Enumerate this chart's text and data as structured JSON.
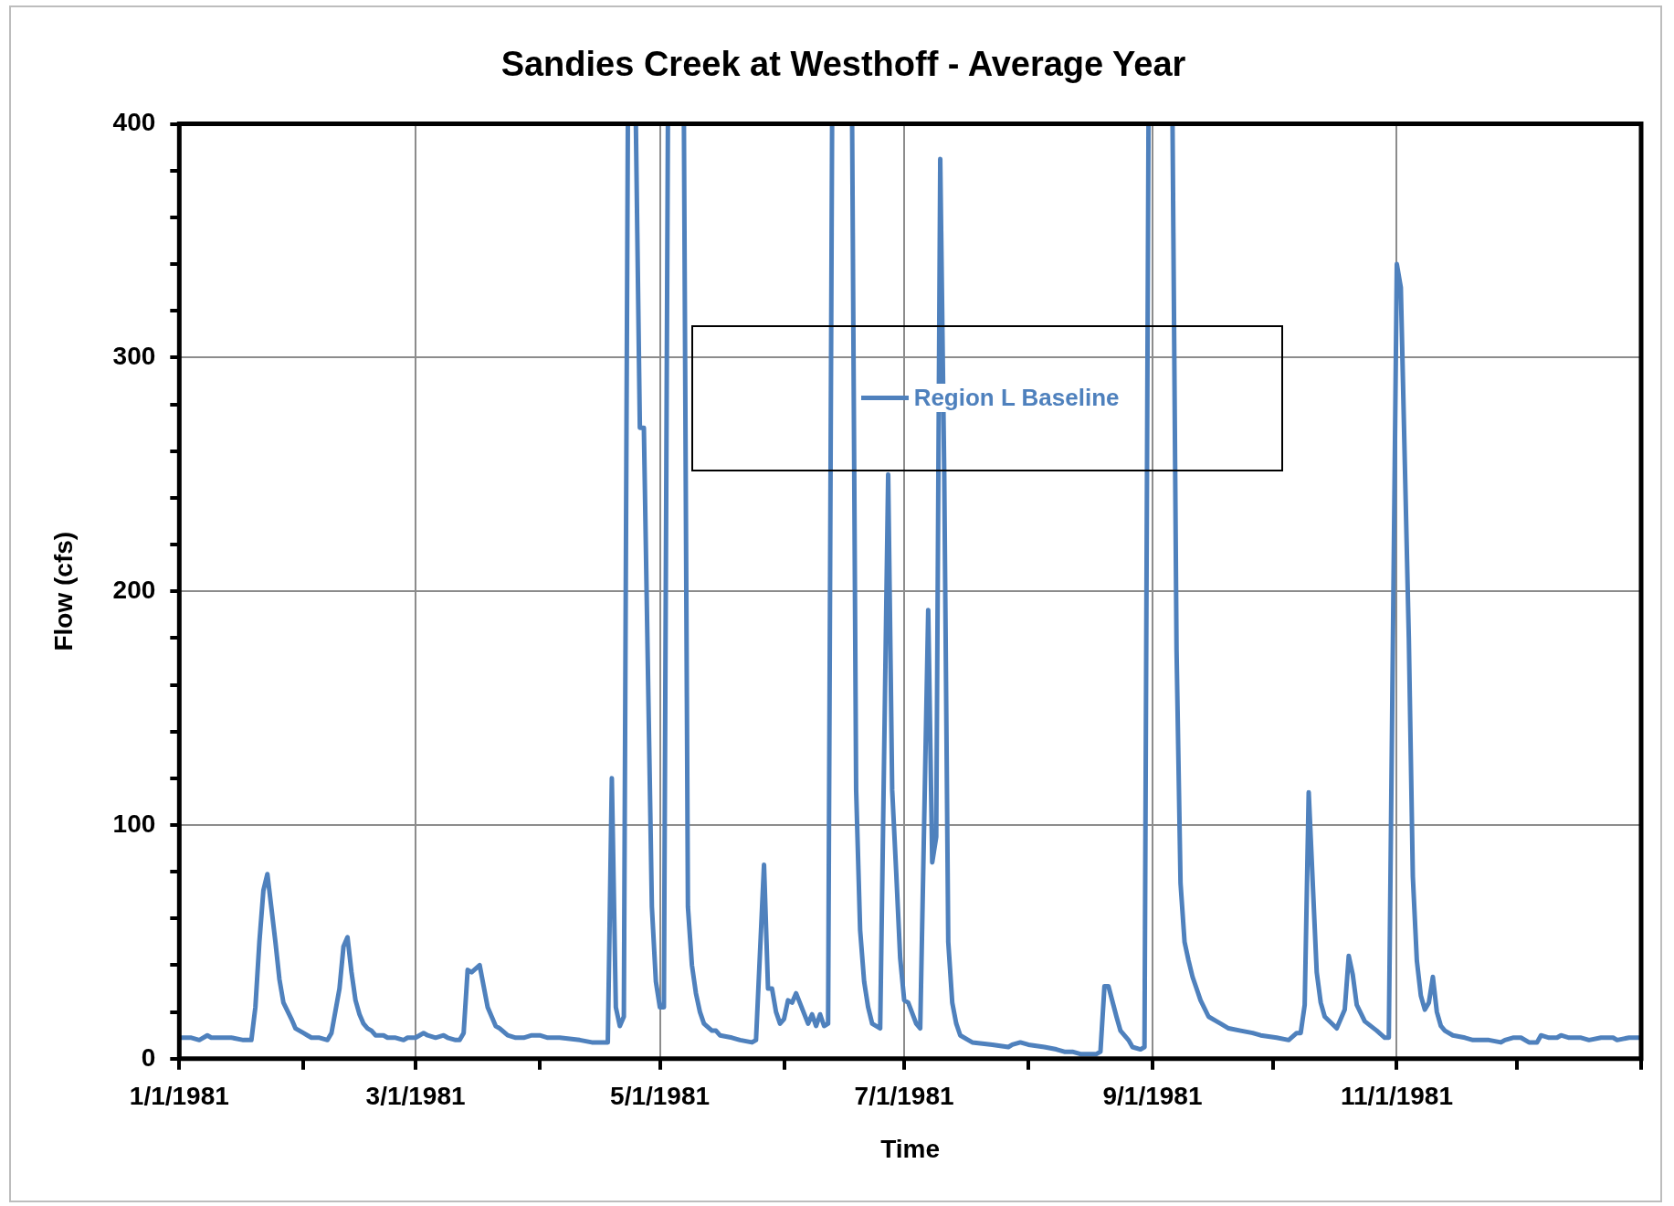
{
  "chart_data": {
    "type": "line",
    "title": "Sandies Creek at Westhoff - Average Year",
    "xlabel": "Time",
    "ylabel": "Flow (cfs)",
    "xlim": [
      "1981-01-01",
      "1982-01-01"
    ],
    "xticks": [
      {
        "value": "1981-01-01",
        "label": "1/1/1981"
      },
      {
        "value": "1981-02-01",
        "label": null
      },
      {
        "value": "1981-03-01",
        "label": "3/1/1981"
      },
      {
        "value": "1981-04-01",
        "label": null
      },
      {
        "value": "1981-05-01",
        "label": "5/1/1981"
      },
      {
        "value": "1981-06-01",
        "label": null
      },
      {
        "value": "1981-07-01",
        "label": "7/1/1981"
      },
      {
        "value": "1981-08-01",
        "label": null
      },
      {
        "value": "1981-09-01",
        "label": "9/1/1981"
      },
      {
        "value": "1981-10-01",
        "label": null
      },
      {
        "value": "1981-11-01",
        "label": "11/1/1981"
      },
      {
        "value": "1981-12-01",
        "label": null
      },
      {
        "value": "1982-01-01",
        "label": null
      }
    ],
    "ylim": [
      0,
      400
    ],
    "yticks": [
      0,
      {
        "value": 20,
        "label": null
      },
      {
        "value": 40,
        "label": null
      },
      {
        "value": 60,
        "label": null
      },
      {
        "value": 80,
        "label": null
      },
      100,
      {
        "value": 120,
        "label": null
      },
      {
        "value": 140,
        "label": null
      },
      {
        "value": 160,
        "label": null
      },
      {
        "value": 180,
        "label": null
      },
      200,
      {
        "value": 220,
        "label": null
      },
      {
        "value": 240,
        "label": null
      },
      {
        "value": 260,
        "label": null
      },
      {
        "value": 280,
        "label": null
      },
      300,
      {
        "value": 320,
        "label": null
      },
      {
        "value": 340,
        "label": null
      },
      {
        "value": 360,
        "label": null
      },
      {
        "value": 380,
        "label": null
      },
      400
    ],
    "grid": true,
    "legend": "top",
    "marker": "none",
    "line_style": "solid",
    "series": [
      {
        "name": "Region L Baseline",
        "color": "#4f81bd",
        "x": [
          "1981-01-01",
          "1981-01-04",
          "1981-01-06",
          "1981-01-08",
          "1981-01-09",
          "1981-01-14",
          "1981-01-17",
          "1981-01-19",
          "1981-01-20",
          "1981-01-21",
          "1981-01-22",
          "1981-01-23",
          "1981-01-25",
          "1981-01-26",
          "1981-01-27",
          "1981-01-29",
          "1981-01-30",
          "1981-02-01",
          "1981-02-02",
          "1981-02-03",
          "1981-02-05",
          "1981-02-07",
          "1981-02-08",
          "1981-02-10",
          "1981-02-11",
          "1981-02-12",
          "1981-02-13",
          "1981-02-14",
          "1981-02-15",
          "1981-02-16",
          "1981-02-17",
          "1981-02-18",
          "1981-02-19",
          "1981-02-21",
          "1981-02-22",
          "1981-02-24",
          "1981-02-26",
          "1981-02-27",
          "1981-03-01",
          "1981-03-02",
          "1981-03-03",
          "1981-03-04",
          "1981-03-06",
          "1981-03-08",
          "1981-03-09",
          "1981-03-11",
          "1981-03-12",
          "1981-03-13",
          "1981-03-14",
          "1981-03-15",
          "1981-03-17",
          "1981-03-18",
          "1981-03-19",
          "1981-03-20",
          "1981-03-21",
          "1981-03-22",
          "1981-03-24",
          "1981-03-26",
          "1981-03-28",
          "1981-03-30",
          "1981-04-01",
          "1981-04-03",
          "1981-04-06",
          "1981-04-11",
          "1981-04-14",
          "1981-04-17",
          "1981-04-18",
          "1981-04-19",
          "1981-04-20",
          "1981-04-21",
          "1981-04-22",
          "1981-04-23",
          "1981-04-25",
          "1981-04-26",
          "1981-04-27",
          "1981-04-29",
          "1981-04-30",
          "1981-05-01",
          "1981-05-02",
          "1981-05-03",
          "1981-05-07",
          "1981-05-08",
          "1981-05-09",
          "1981-05-10",
          "1981-05-11",
          "1981-05-12",
          "1981-05-14",
          "1981-05-15",
          "1981-05-16",
          "1981-05-19",
          "1981-05-21",
          "1981-05-24",
          "1981-05-25",
          "1981-05-27",
          "1981-05-28",
          "1981-05-29",
          "1981-05-30",
          "1981-05-31",
          "1981-06-01",
          "1981-06-02",
          "1981-06-03",
          "1981-06-04",
          "1981-06-07",
          "1981-06-08",
          "1981-06-09",
          "1981-06-10",
          "1981-06-11",
          "1981-06-12",
          "1981-06-13",
          "1981-06-18",
          "1981-06-19",
          "1981-06-20",
          "1981-06-21",
          "1981-06-22",
          "1981-06-23",
          "1981-06-25",
          "1981-06-27",
          "1981-06-28",
          "1981-06-29",
          "1981-06-30",
          "1981-07-01",
          "1981-07-02",
          "1981-07-04",
          "1981-07-05",
          "1981-07-07",
          "1981-07-08",
          "1981-07-09",
          "1981-07-10",
          "1981-07-11",
          "1981-07-12",
          "1981-07-13",
          "1981-07-14",
          "1981-07-15",
          "1981-07-17",
          "1981-07-18",
          "1981-07-23",
          "1981-07-27",
          "1981-07-28",
          "1981-07-30",
          "1981-08-01",
          "1981-08-05",
          "1981-08-08",
          "1981-08-10",
          "1981-08-12",
          "1981-08-14",
          "1981-08-18",
          "1981-08-19",
          "1981-08-20",
          "1981-08-21",
          "1981-08-23",
          "1981-08-24",
          "1981-08-26",
          "1981-08-27",
          "1981-08-29",
          "1981-08-30",
          "1981-08-31",
          "1981-09-06",
          "1981-09-07",
          "1981-09-08",
          "1981-09-09",
          "1981-09-10",
          "1981-09-11",
          "1981-09-12",
          "1981-09-13",
          "1981-09-15",
          "1981-09-17",
          "1981-09-18",
          "1981-09-20",
          "1981-09-23",
          "1981-09-26",
          "1981-09-28",
          "1981-10-02",
          "1981-10-05",
          "1981-10-07",
          "1981-10-08",
          "1981-10-09",
          "1981-10-10",
          "1981-10-12",
          "1981-10-13",
          "1981-10-14",
          "1981-10-17",
          "1981-10-19",
          "1981-10-20",
          "1981-10-21",
          "1981-10-22",
          "1981-10-24",
          "1981-10-27",
          "1981-10-29",
          "1981-10-30",
          "1981-11-01",
          "1981-11-02",
          "1981-11-04",
          "1981-11-05",
          "1981-11-06",
          "1981-11-07",
          "1981-11-08",
          "1981-11-09",
          "1981-11-10",
          "1981-11-11",
          "1981-11-12",
          "1981-11-13",
          "1981-11-15",
          "1981-11-18",
          "1981-11-20",
          "1981-11-24",
          "1981-11-27",
          "1981-11-28",
          "1981-11-30",
          "1981-12-02",
          "1981-12-04",
          "1981-12-06",
          "1981-12-07",
          "1981-12-09",
          "1981-12-11",
          "1981-12-12",
          "1981-12-14",
          "1981-12-17",
          "1981-12-19",
          "1981-12-22",
          "1981-12-25",
          "1981-12-26",
          "1981-12-29",
          "1982-01-01"
        ],
        "values": [
          9,
          9,
          8,
          10,
          9,
          9,
          8,
          8,
          22,
          50,
          72,
          79,
          50,
          34,
          24,
          17,
          13,
          11,
          10,
          9,
          9,
          8,
          11,
          30,
          48,
          52,
          37,
          25,
          19,
          15,
          13,
          12,
          10,
          10,
          9,
          9,
          8,
          9,
          9,
          10,
          11,
          10,
          9,
          10,
          9,
          8,
          8,
          11,
          38,
          37,
          40,
          31,
          22,
          18,
          14,
          13,
          10,
          9,
          9,
          10,
          10,
          9,
          9,
          8,
          7,
          7,
          7,
          120,
          22,
          14,
          18,
          400,
          400,
          270,
          270,
          65,
          33,
          22,
          22,
          400,
          400,
          65,
          40,
          28,
          20,
          15,
          12,
          12,
          10,
          9,
          8,
          7,
          8,
          83,
          30,
          30,
          20,
          15,
          17,
          25,
          24,
          28,
          15,
          19,
          14,
          19,
          14,
          15,
          400,
          400,
          115,
          55,
          33,
          22,
          15,
          13,
          250,
          115,
          80,
          43,
          25,
          24,
          15,
          13,
          192,
          84,
          95,
          385,
          250,
          50,
          24,
          15,
          10,
          8,
          7,
          6,
          5,
          6,
          7,
          6,
          5,
          4,
          3,
          3,
          2,
          2,
          3,
          31,
          31,
          18,
          12,
          8,
          5,
          4,
          5,
          400,
          400,
          175,
          75,
          50,
          42,
          35,
          30,
          25,
          18,
          16,
          15,
          13,
          12,
          11,
          10,
          9,
          8,
          11,
          11,
          23,
          114,
          37,
          24,
          18,
          13,
          21,
          44,
          36,
          23,
          16,
          12,
          9,
          9,
          340,
          330,
          180,
          78,
          42,
          27,
          21,
          24,
          35,
          20,
          14,
          12,
          10,
          9,
          8,
          8,
          7,
          8,
          9,
          9,
          7,
          7,
          10,
          9,
          9,
          10,
          9,
          9,
          8,
          9,
          9,
          8,
          9,
          9
        ]
      }
    ]
  }
}
